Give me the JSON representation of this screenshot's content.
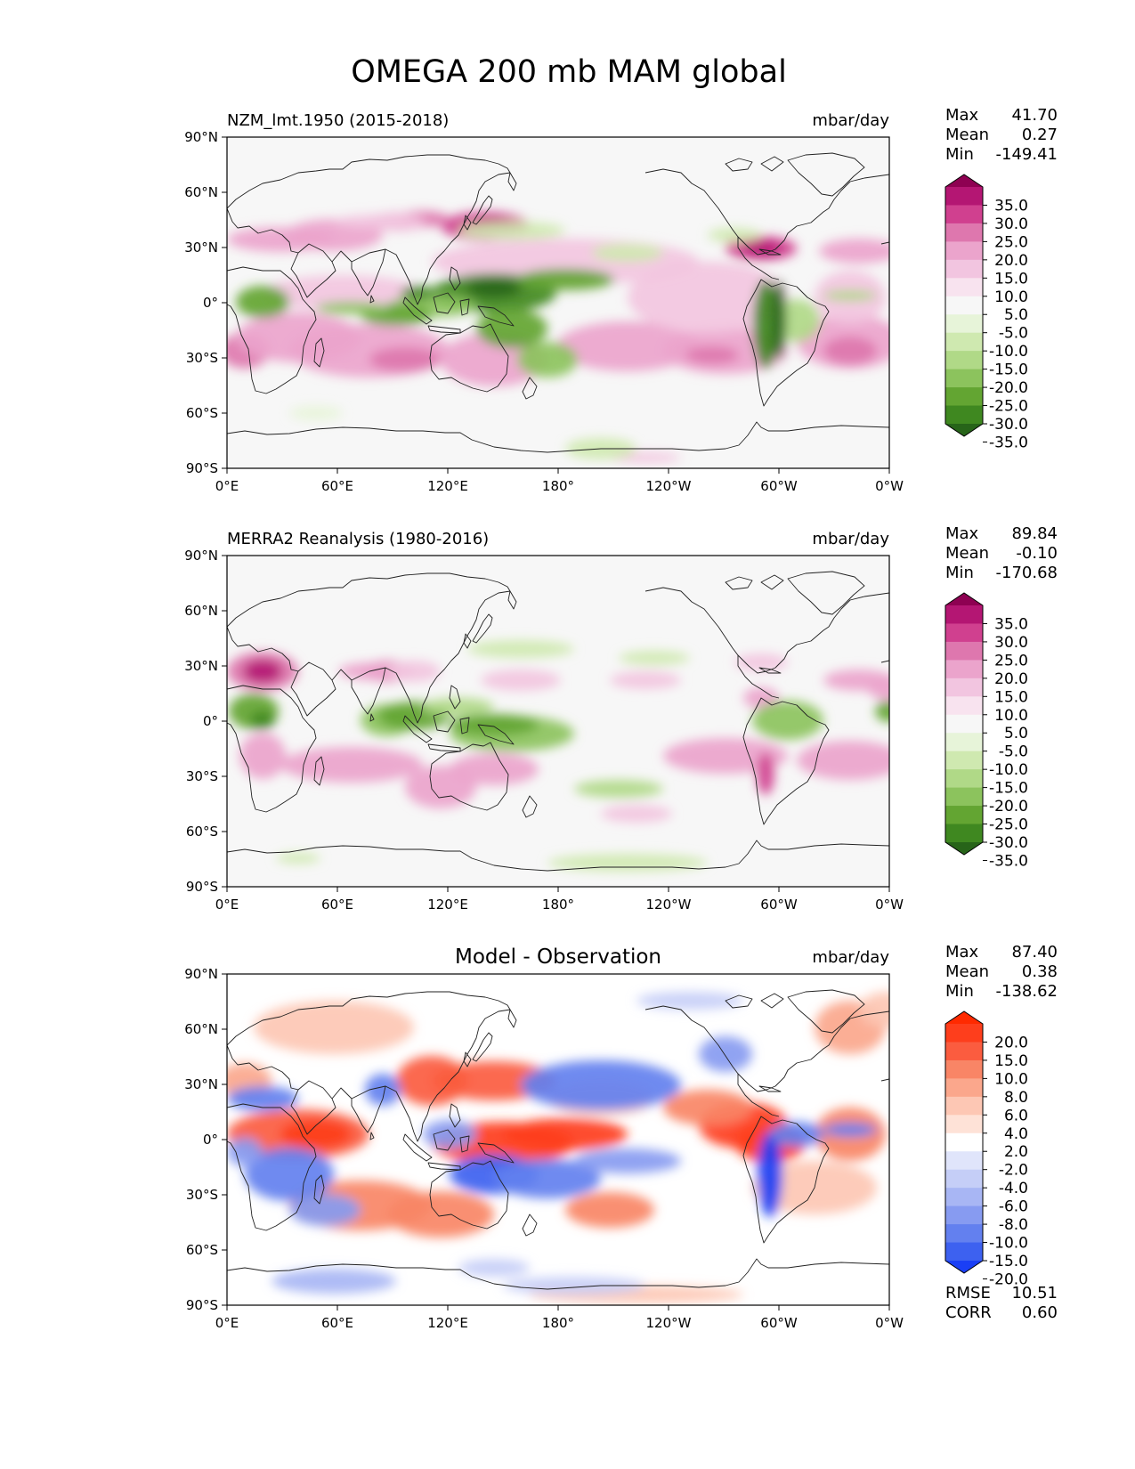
{
  "chart_data": {
    "type": "heatmap",
    "title": "OMEGA 200 mb MAM global",
    "x_ticks": [
      "0°E",
      "60°E",
      "120°E",
      "180°",
      "120°W",
      "60°W",
      "0°W"
    ],
    "y_ticks": [
      "90°N",
      "60°N",
      "30°N",
      "0°",
      "30°S",
      "60°S",
      "90°S"
    ],
    "xlim": [
      0,
      360
    ],
    "ylim": [
      -90,
      90
    ],
    "panels": [
      {
        "left_title": "NZM_lmt.1950 (2015-2018)",
        "center_title": "",
        "units": "mbar/day",
        "stats": {
          "max_label": "Max",
          "max": "41.70",
          "mean_label": "Mean",
          "mean": "0.27",
          "min_label": "Min",
          "min": "-149.41"
        },
        "colorbar_labels": [
          "35.0",
          "30.0",
          "25.0",
          "20.0",
          "15.0",
          "10.0",
          "5.0",
          "-5.0",
          "-10.0",
          "-15.0",
          "-20.0",
          "-25.0",
          "-30.0",
          "-35.0"
        ],
        "colorbar_colors": [
          "#8e0152",
          "#b41673",
          "#d0408f",
          "#de77ae",
          "#eba4cc",
          "#f2c5e0",
          "#f8e3ef",
          "#f7f7f7",
          "#e7f4d9",
          "#cfe9b0",
          "#b0d987",
          "#8cc35d",
          "#63a532",
          "#3f8820",
          "#276419"
        ]
      },
      {
        "left_title": "MERRA2 Reanalysis (1980-2016)",
        "center_title": "",
        "units": "mbar/day",
        "stats": {
          "max_label": "Max",
          "max": "89.84",
          "mean_label": "Mean",
          "mean": "-0.10",
          "min_label": "Min",
          "min": "-170.68"
        },
        "colorbar_labels": [
          "35.0",
          "30.0",
          "25.0",
          "20.0",
          "15.0",
          "10.0",
          "5.0",
          "-5.0",
          "-10.0",
          "-15.0",
          "-20.0",
          "-25.0",
          "-30.0",
          "-35.0"
        ],
        "colorbar_colors": [
          "#8e0152",
          "#b41673",
          "#d0408f",
          "#de77ae",
          "#eba4cc",
          "#f2c5e0",
          "#f8e3ef",
          "#f7f7f7",
          "#e7f4d9",
          "#cfe9b0",
          "#b0d987",
          "#8cc35d",
          "#63a532",
          "#3f8820",
          "#276419"
        ]
      },
      {
        "left_title": "",
        "center_title": "Model - Observation",
        "units": "mbar/day",
        "stats": {
          "max_label": "Max",
          "max": "87.40",
          "mean_label": "Mean",
          "mean": "0.38",
          "min_label": "Min",
          "min": "-138.62"
        },
        "colorbar_labels": [
          "20.0",
          "15.0",
          "10.0",
          "8.0",
          "6.0",
          "4.0",
          "2.0",
          "-2.0",
          "-4.0",
          "-6.0",
          "-8.0",
          "-10.0",
          "-15.0",
          "-20.0"
        ],
        "colorbar_colors": [
          "#ff2a00",
          "#fe3e1c",
          "#fb5c3f",
          "#f98566",
          "#fba78c",
          "#fdc7b4",
          "#fee2d7",
          "#ffffff",
          "#e0e5fb",
          "#c5cef7",
          "#a8b6f4",
          "#879bf1",
          "#6380ef",
          "#3d61f0",
          "#1a3ff5"
        ],
        "rmse_label": "RMSE",
        "rmse": "10.51",
        "corr_label": "CORR",
        "corr": "0.60"
      }
    ]
  }
}
